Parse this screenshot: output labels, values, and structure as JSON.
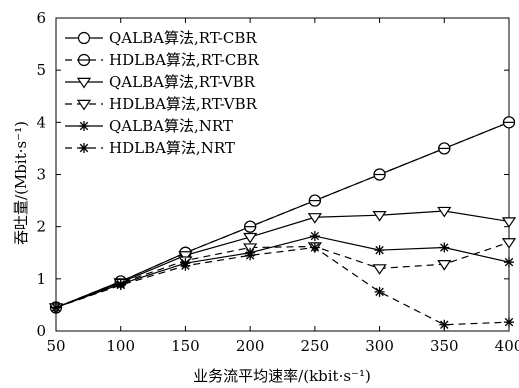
{
  "chart_data": {
    "type": "line",
    "xlabel": "业务流平均速率/(kbit·s⁻¹)",
    "ylabel": "吞吐量/(Mbit·s⁻¹)",
    "xlim": [
      50,
      400
    ],
    "ylim": [
      0,
      6
    ],
    "xticks": [
      50,
      100,
      150,
      200,
      250,
      300,
      350,
      400
    ],
    "yticks": [
      0,
      1,
      2,
      3,
      4,
      5,
      6
    ],
    "grid": false,
    "legend_position": "top-left",
    "x": [
      50,
      100,
      150,
      200,
      250,
      300,
      350,
      400
    ],
    "series": [
      {
        "name": "QALBA算法,RT-CBR",
        "marker": "circle",
        "dash": "solid",
        "values": [
          0.45,
          0.95,
          1.5,
          2.0,
          2.5,
          3.0,
          3.5,
          4.0
        ]
      },
      {
        "name": "HDLBA算法,RT-CBR",
        "marker": "circle-bar",
        "dash": "dashed",
        "values": [
          0.45,
          0.95,
          1.5,
          2.0,
          2.5,
          3.0,
          3.5,
          4.0
        ]
      },
      {
        "name": "QALBA算法,RT-VBR",
        "marker": "triangle",
        "dash": "solid",
        "values": [
          0.45,
          0.93,
          1.45,
          1.8,
          2.18,
          2.22,
          2.3,
          2.1
        ]
      },
      {
        "name": "HDLBA算法,RT-VBR",
        "marker": "triangle",
        "dash": "dashed",
        "values": [
          0.45,
          0.92,
          1.35,
          1.6,
          1.62,
          1.2,
          1.28,
          1.7
        ]
      },
      {
        "name": "QALBA算法,NRT",
        "marker": "star",
        "dash": "solid",
        "values": [
          0.45,
          0.9,
          1.3,
          1.5,
          1.82,
          1.55,
          1.6,
          1.32
        ]
      },
      {
        "name": "HDLBA算法,NRT",
        "marker": "star",
        "dash": "dashed",
        "values": [
          0.45,
          0.88,
          1.25,
          1.45,
          1.6,
          0.75,
          0.12,
          0.17
        ]
      }
    ]
  }
}
